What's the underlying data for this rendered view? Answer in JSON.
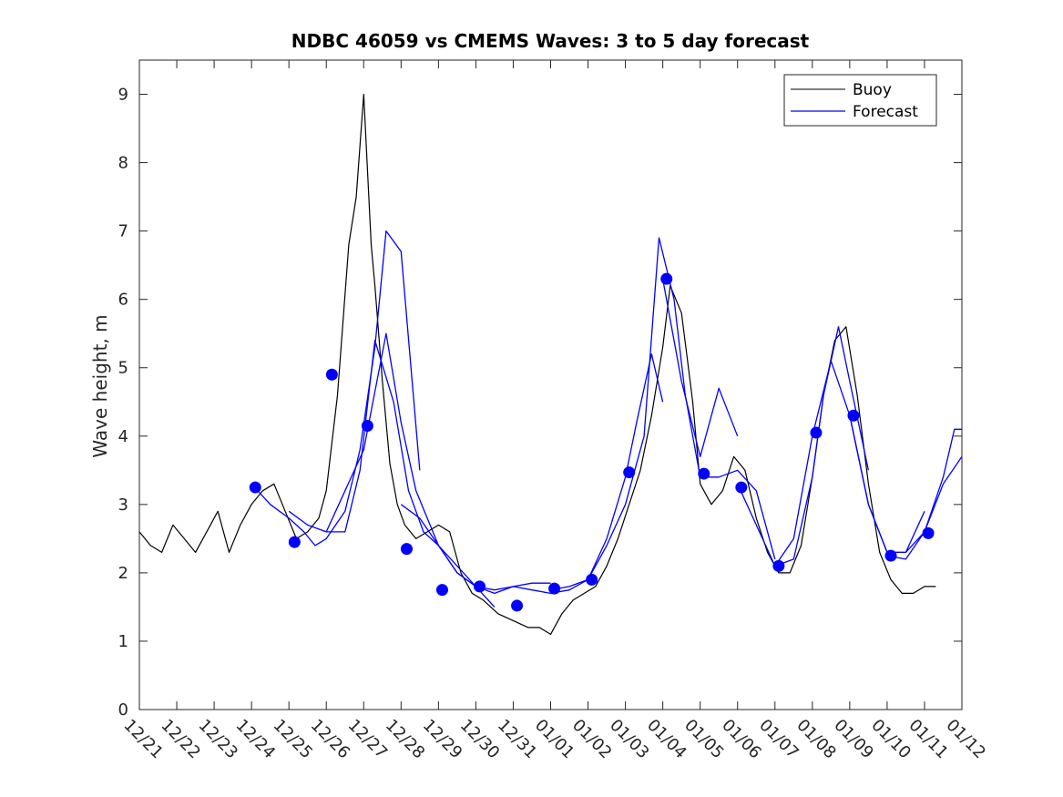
{
  "chart_data": {
    "type": "line",
    "title": "NDBC 46059 vs CMEMS Waves: 3 to 5 day forecast",
    "xlabel": "",
    "ylabel": "Wave height, m",
    "xlim": [
      0,
      22
    ],
    "ylim": [
      0,
      9.5
    ],
    "x_unit": "days since 12/21",
    "x_tick_values": [
      0,
      1,
      2,
      3,
      4,
      5,
      6,
      7,
      8,
      9,
      10,
      11,
      12,
      13,
      14,
      15,
      16,
      17,
      18,
      19,
      20,
      21,
      22
    ],
    "x_tick_labels": [
      "12/21",
      "12/22",
      "12/23",
      "12/24",
      "12/25",
      "12/26",
      "12/27",
      "12/28",
      "12/29",
      "12/30",
      "12/31",
      "01/01",
      "01/02",
      "01/03",
      "01/04",
      "01/05",
      "01/06",
      "01/07",
      "01/08",
      "01/09",
      "01/10",
      "01/11",
      "01/12"
    ],
    "y_ticks": [
      0,
      1,
      2,
      3,
      4,
      5,
      6,
      7,
      8,
      9
    ],
    "legend": {
      "position": "top-right",
      "entries": [
        {
          "name": "Buoy",
          "color": "#000000"
        },
        {
          "name": "Forecast",
          "color": "#0000ff"
        }
      ]
    },
    "series": [
      {
        "name": "Buoy",
        "color": "#000000",
        "x": [
          0,
          0.3,
          0.6,
          0.9,
          1.2,
          1.5,
          1.8,
          2.1,
          2.4,
          2.7,
          3.0,
          3.3,
          3.6,
          3.9,
          4.2,
          4.5,
          4.8,
          5.0,
          5.3,
          5.6,
          5.8,
          6.0,
          6.2,
          6.3,
          6.5,
          6.7,
          6.9,
          7.1,
          7.4,
          7.7,
          8.0,
          8.3,
          8.6,
          8.9,
          9.2,
          9.6,
          10.0,
          10.4,
          10.7,
          11.0,
          11.3,
          11.6,
          11.9,
          12.2,
          12.5,
          12.8,
          13.1,
          13.4,
          13.7,
          14.0,
          14.2,
          14.5,
          14.8,
          15.0,
          15.3,
          15.6,
          15.9,
          16.2,
          16.5,
          16.8,
          17.1,
          17.4,
          17.7,
          18.0,
          18.3,
          18.6,
          18.9,
          19.2,
          19.5,
          19.8,
          20.1,
          20.4,
          20.7,
          21.0,
          21.3
        ],
        "y": [
          2.6,
          2.4,
          2.3,
          2.7,
          2.5,
          2.3,
          2.6,
          2.9,
          2.3,
          2.7,
          3.0,
          3.2,
          3.3,
          2.9,
          2.5,
          2.6,
          2.8,
          3.2,
          4.6,
          6.8,
          7.5,
          9.0,
          6.8,
          6.2,
          4.8,
          3.6,
          3.0,
          2.7,
          2.5,
          2.6,
          2.7,
          2.6,
          2.0,
          1.7,
          1.6,
          1.4,
          1.3,
          1.2,
          1.2,
          1.1,
          1.4,
          1.6,
          1.7,
          1.8,
          2.1,
          2.5,
          3.0,
          3.5,
          4.3,
          5.3,
          6.2,
          5.8,
          4.5,
          3.3,
          3.0,
          3.2,
          3.7,
          3.5,
          2.8,
          2.3,
          2.0,
          2.0,
          2.4,
          3.4,
          4.6,
          5.4,
          5.6,
          4.6,
          3.3,
          2.3,
          1.9,
          1.7,
          1.7,
          1.8,
          1.8
        ]
      },
      {
        "name": "Forecast",
        "color": "#0000ff",
        "segments": [
          {
            "x": [
              3.0,
              3.5,
              4.0,
              4.4,
              4.7,
              5.0,
              5.5,
              5.9,
              6.3,
              6.6,
              7.0,
              7.5
            ],
            "y": [
              3.3,
              3.0,
              2.8,
              2.6,
              2.4,
              2.5,
              2.9,
              3.8,
              5.3,
              7.0,
              6.7,
              3.5
            ]
          },
          {
            "x": [
              4.0,
              4.5,
              5.0,
              5.5,
              5.9,
              6.3,
              6.8,
              7.2,
              7.6,
              8.0
            ],
            "y": [
              2.9,
              2.7,
              2.6,
              2.6,
              3.5,
              5.4,
              4.5,
              3.2,
              2.6,
              2.4
            ]
          },
          {
            "x": [
              5.0,
              5.5,
              6.0,
              6.6,
              7.0,
              7.4,
              8.0,
              8.5,
              9.0
            ],
            "y": [
              2.6,
              3.2,
              3.8,
              5.5,
              4.2,
              3.2,
              2.4,
              2.1,
              1.8
            ]
          },
          {
            "x": [
              7.0,
              7.5,
              8.0,
              8.5,
              9.0,
              9.5
            ],
            "y": [
              3.0,
              2.8,
              2.4,
              2.0,
              1.8,
              1.5
            ]
          },
          {
            "x": [
              8.0,
              8.5,
              9.0,
              9.5,
              10.0,
              10.5,
              11.0
            ],
            "y": [
              2.4,
              2.0,
              1.8,
              1.7,
              1.8,
              1.85,
              1.85
            ]
          },
          {
            "x": [
              9.0,
              9.5,
              10.0,
              10.5,
              11.0,
              11.5,
              12.0
            ],
            "y": [
              1.8,
              1.75,
              1.8,
              1.75,
              1.7,
              1.75,
              1.9
            ]
          },
          {
            "x": [
              11.0,
              11.5,
              12.0,
              12.5,
              13.0,
              13.3,
              13.7,
              14.0
            ],
            "y": [
              1.75,
              1.8,
              1.9,
              2.5,
              3.4,
              4.2,
              5.2,
              4.5
            ]
          },
          {
            "x": [
              12.0,
              12.5,
              13.0,
              13.5,
              13.9,
              14.3,
              14.6,
              15.0,
              15.5,
              16.0,
              16.5,
              17.0
            ],
            "y": [
              1.9,
              2.4,
              3.0,
              4.0,
              6.9,
              6.0,
              4.6,
              3.4,
              3.4,
              3.5,
              3.2,
              2.2
            ]
          },
          {
            "x": [
              14.0,
              14.5,
              15.0,
              15.5,
              16.0
            ],
            "y": [
              6.3,
              4.8,
              3.7,
              4.7,
              4.0
            ]
          },
          {
            "x": [
              16.0,
              16.5,
              17.0,
              17.5,
              18.0,
              18.3,
              18.7,
              19.0,
              19.5
            ],
            "y": [
              3.3,
              2.7,
              2.1,
              2.2,
              3.4,
              4.6,
              5.6,
              4.8,
              3.5
            ]
          },
          {
            "x": [
              17.0,
              17.5,
              18.0,
              18.5,
              19.0,
              19.5,
              20.0,
              20.5,
              21.0
            ],
            "y": [
              2.1,
              2.5,
              4.0,
              5.1,
              4.3,
              3.0,
              2.3,
              2.3,
              2.9
            ]
          },
          {
            "x": [
              19.0,
              19.5,
              20.0,
              20.5,
              21.0,
              21.5,
              22.0
            ],
            "y": [
              4.3,
              3.0,
              2.3,
              2.3,
              2.6,
              3.3,
              3.7
            ]
          },
          {
            "x": [
              20.0,
              20.5,
              21.0,
              21.5,
              21.8,
              22.0
            ],
            "y": [
              2.25,
              2.2,
              2.6,
              3.4,
              4.1,
              4.1
            ]
          }
        ]
      },
      {
        "name": "Forecast markers",
        "color": "#0000ff",
        "x": [
          3.1,
          4.15,
          5.15,
          6.1,
          7.15,
          8.1,
          9.1,
          10.1,
          11.1,
          12.1,
          13.1,
          14.1,
          15.1,
          16.1,
          17.1,
          18.1,
          19.1,
          20.1,
          21.1
        ],
        "y": [
          3.25,
          2.45,
          4.9,
          4.15,
          2.35,
          1.75,
          1.8,
          1.52,
          1.77,
          1.9,
          3.47,
          6.3,
          3.45,
          3.25,
          2.1,
          4.05,
          4.3,
          2.25,
          2.58
        ]
      }
    ]
  }
}
